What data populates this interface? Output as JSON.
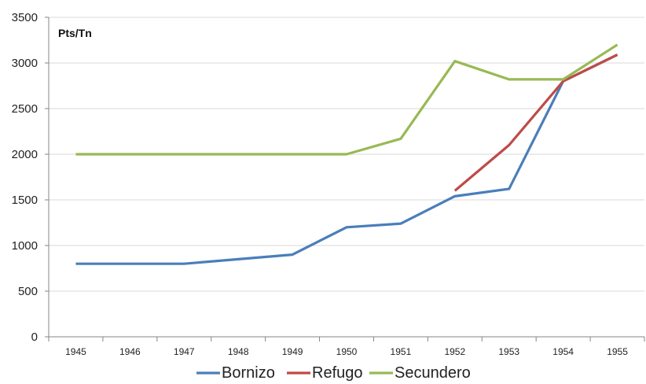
{
  "chart_data": {
    "type": "line",
    "title": "",
    "unit_label": "Pts/Tn",
    "xlabel": "",
    "ylabel": "",
    "x": [
      "1945",
      "1946",
      "1947",
      "1948",
      "1949",
      "1950",
      "1951",
      "1952",
      "1953",
      "1954",
      "1955"
    ],
    "ylim": [
      0,
      3500
    ],
    "yticks": [
      0,
      500,
      1000,
      1500,
      2000,
      2500,
      3000,
      3500
    ],
    "grid": true,
    "legend_position": "bottom",
    "series": [
      {
        "name": "Bornizo",
        "color": "#4a7ebb",
        "values": [
          800,
          800,
          800,
          850,
          900,
          1200,
          1240,
          1540,
          1620,
          2800,
          3090
        ]
      },
      {
        "name": "Refugo",
        "color": "#be4b48",
        "values": [
          null,
          null,
          null,
          null,
          null,
          null,
          null,
          1600,
          2100,
          2800,
          3090
        ]
      },
      {
        "name": "Secundero",
        "color": "#98b954",
        "values": [
          2000,
          2000,
          2000,
          2000,
          2000,
          2000,
          2170,
          3020,
          2820,
          2820,
          3200
        ]
      }
    ]
  }
}
